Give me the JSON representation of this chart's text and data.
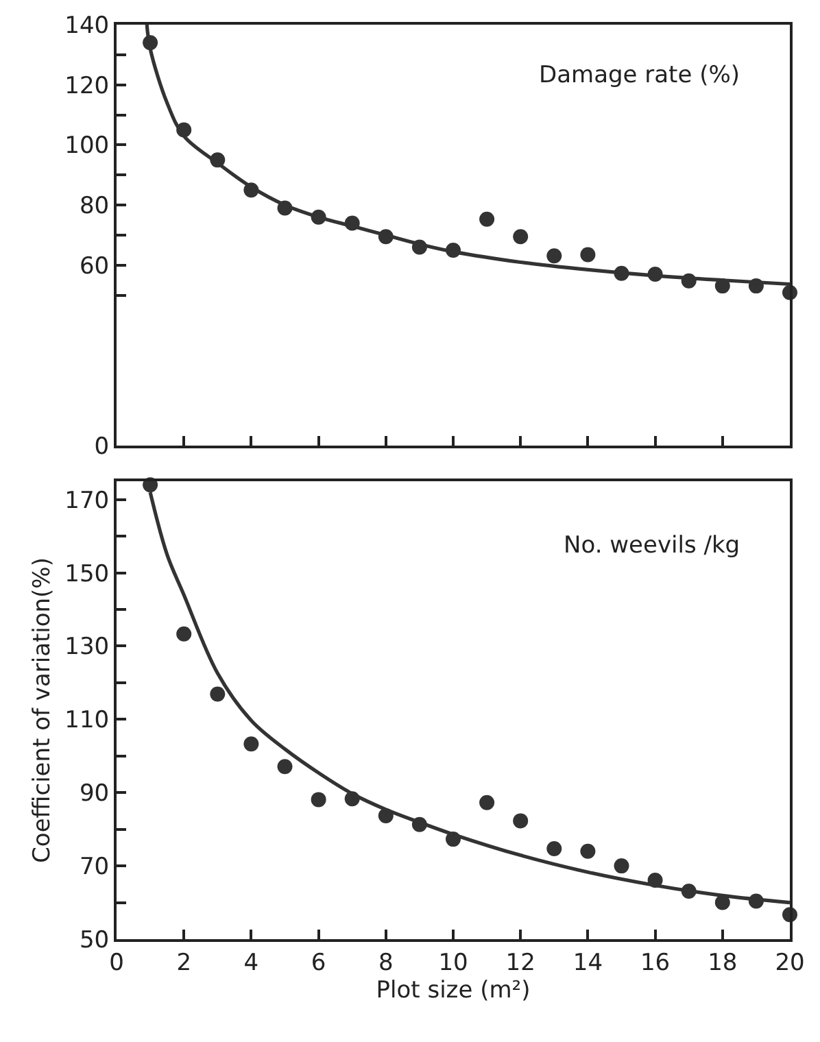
{
  "chart_data": [
    {
      "type": "scatter",
      "x": [
        1,
        2,
        3,
        4,
        5,
        6,
        7,
        8,
        9,
        10,
        11,
        12,
        13,
        14,
        15,
        16,
        17,
        18,
        19,
        20
      ],
      "xlim": [
        0,
        20
      ],
      "xticks": [
        0,
        2,
        4,
        6,
        8,
        10,
        12,
        14,
        16,
        18,
        20
      ],
      "ylim": [
        0,
        140
      ],
      "yticks": [
        0,
        {
          "value": 50,
          "label": null
        },
        60,
        {
          "value": 70,
          "label": null
        },
        80,
        {
          "value": 90,
          "label": null
        },
        100,
        {
          "value": 110,
          "label": null
        },
        120,
        {
          "value": 130,
          "label": null
        },
        140
      ],
      "tick_labels": "y",
      "annotations": [
        "Damage rate (%)"
      ],
      "series": [
        {
          "color": "#333333",
          "marker": "circle",
          "values": [
            134,
            105,
            95,
            85,
            79,
            76,
            74,
            69.5,
            66,
            65,
            75.3,
            69.5,
            63.1,
            63.5,
            57.3,
            57,
            54.8,
            53.1,
            53.1,
            50.9
          ]
        },
        {
          "type": "line",
          "color": "#333333",
          "marker": "none",
          "line_style": "solid",
          "x": [
            0.9,
            1,
            1.5,
            2,
            3,
            4,
            5,
            6,
            7,
            8,
            9,
            10,
            12,
            14,
            16,
            18,
            20
          ],
          "values": [
            140,
            132,
            114,
            103,
            94,
            86,
            80,
            76,
            73,
            70,
            67,
            64.5,
            61,
            58.5,
            56.5,
            55,
            53.7
          ]
        }
      ]
    },
    {
      "type": "scatter",
      "x": [
        1,
        2,
        3,
        4,
        5,
        6,
        7,
        8,
        9,
        10,
        11,
        12,
        13,
        14,
        15,
        16,
        17,
        18,
        19,
        20
      ],
      "xlim": [
        0,
        20
      ],
      "xticks": [
        0,
        2,
        4,
        6,
        8,
        10,
        12,
        14,
        16,
        18,
        20
      ],
      "ylim": [
        50,
        175
      ],
      "yticks": [
        50,
        {
          "value": 60,
          "label": null
        },
        70,
        {
          "value": 80,
          "label": null
        },
        90,
        {
          "value": 100,
          "label": null
        },
        110,
        {
          "value": 120,
          "label": null
        },
        130,
        {
          "value": 140,
          "label": null
        },
        150,
        {
          "value": 160,
          "label": null
        },
        170
      ],
      "xlabel": "Plot size (m²)",
      "ylabel": "Coefficient of variation(%)",
      "annotations": [
        "No. weevils /kg"
      ],
      "series": [
        {
          "color": "#333333",
          "marker": "circle",
          "values": [
            174,
            133.3,
            116.9,
            103.3,
            97.1,
            88.1,
            88.3,
            83.7,
            81.3,
            77.3,
            87.3,
            82.3,
            74.7,
            74,
            70,
            66.1,
            63.1,
            60,
            60.4,
            56.7
          ]
        },
        {
          "type": "line",
          "color": "#333333",
          "marker": "none",
          "line_style": "solid",
          "x": [
            1,
            1.5,
            2,
            3,
            4,
            5,
            6,
            7,
            8,
            9,
            10,
            12,
            14,
            16,
            18,
            20
          ],
          "values": [
            172,
            155,
            144,
            122.6,
            109.7,
            101.9,
            95.4,
            89.7,
            85.4,
            81.9,
            78.6,
            72.9,
            68.3,
            64.7,
            61.9,
            60
          ]
        }
      ]
    }
  ]
}
